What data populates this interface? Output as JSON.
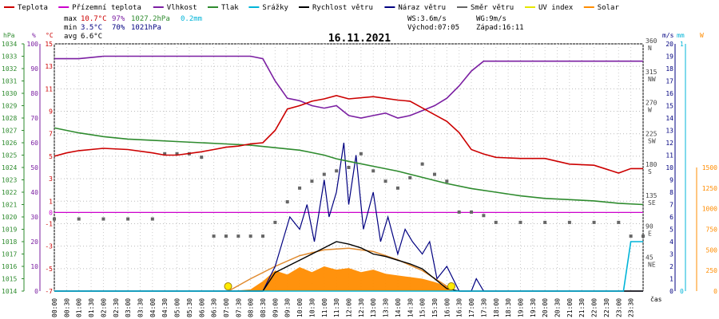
{
  "chart_data": {
    "type": "line",
    "title": "16.11.2021",
    "legend": [
      {
        "name": "Teplota",
        "color": "#cc0000"
      },
      {
        "name": "Přízemní teplota",
        "color": "#cc00cc"
      },
      {
        "name": "Vlhkost",
        "color": "#7b1fa2"
      },
      {
        "name": "Tlak",
        "color": "#2e8b2e"
      },
      {
        "name": "Srážky",
        "color": "#00b4d8"
      },
      {
        "name": "Rychlost větru",
        "color": "#000000"
      },
      {
        "name": "Náraz větru",
        "color": "#000080"
      },
      {
        "name": "Směr větru",
        "color": "#666666"
      },
      {
        "name": "UV index",
        "color": "#e6e600"
      },
      {
        "name": "Solar",
        "color": "#ff8c00"
      }
    ],
    "stats": {
      "max_label": "max",
      "max_temp": "10.7°C",
      "max_hum": "97%",
      "max_press": "1027.2hPa",
      "max_rain": "0.2mm",
      "min_label": "min",
      "min_temp": "3.5°C",
      "min_hum": "70%",
      "min_press": "1021hPa",
      "avg_label": "avg",
      "avg_temp": "6.6°C"
    },
    "wind_info": {
      "ws": "WS:3.6m/s",
      "wg": "WG:9m/s",
      "sunrise": "Východ:07:05",
      "sunset": "Západ:16:11"
    },
    "left_axis_units": [
      "hPa",
      "%",
      "°C"
    ],
    "right_axis_units": [
      "m/s",
      "mm",
      "W"
    ],
    "hpa_ticks": [
      "1034",
      "1033",
      "1032",
      "1031",
      "1030",
      "1029",
      "1028",
      "1027",
      "1026",
      "1025",
      "1024",
      "1023",
      "1022",
      "1021",
      "1020",
      "1019",
      "1018",
      "1017",
      "1016",
      "1015",
      "1014"
    ],
    "pct_ticks": [
      "100",
      "90",
      "80",
      "70",
      "60",
      "50",
      "40",
      "30",
      "20",
      "10",
      "0"
    ],
    "temp_ticks": [
      "15",
      "13",
      "11",
      "9",
      "7",
      "5",
      "3",
      "1",
      "-1",
      "-3",
      "-5",
      "-7"
    ],
    "temp_tick_zero": "0",
    "dir_ticks": [
      {
        "deg": "360",
        "dir": "N"
      },
      {
        "deg": "315",
        "dir": "NW"
      },
      {
        "deg": "270",
        "dir": "W"
      },
      {
        "deg": "225",
        "dir": "SW"
      },
      {
        "deg": "180",
        "dir": "S"
      },
      {
        "deg": "135",
        "dir": "SE"
      },
      {
        "deg": "90",
        "dir": "E"
      },
      {
        "deg": "45",
        "dir": "NE"
      },
      {
        "deg": "0",
        "dir": "N"
      }
    ],
    "ms_ticks": [
      "20",
      "19",
      "18",
      "17",
      "16",
      "15",
      "14",
      "13",
      "12",
      "11",
      "10",
      "9",
      "8",
      "7",
      "6",
      "5",
      "4",
      "3",
      "2",
      "1",
      "0"
    ],
    "mm_ticks": [
      "1",
      "0"
    ],
    "w_ticks": [
      "1500",
      "1250",
      "1000",
      "750",
      "500",
      "250",
      "0"
    ],
    "x_labels": [
      "00:00",
      "00:30",
      "01:00",
      "01:30",
      "02:00",
      "02:30",
      "03:00",
      "03:30",
      "04:00",
      "04:30",
      "05:00",
      "05:30",
      "06:00",
      "06:30",
      "07:00",
      "07:30",
      "08:00",
      "08:30",
      "09:00",
      "09:30",
      "10:00",
      "10:30",
      "11:00",
      "11:30",
      "12:00",
      "12:30",
      "13:00",
      "13:30",
      "14:00",
      "14:30",
      "15:00",
      "15:30",
      "16:00",
      "16:30",
      "17:00",
      "17:30",
      "18:00",
      "18:30",
      "19:00",
      "19:30",
      "20:00",
      "20:30",
      "21:00",
      "21:30",
      "22:00",
      "22:30",
      "23:00",
      "23:30"
    ],
    "x_axis_label": "čas",
    "temperature": {
      "hours": [
        0,
        0.5,
        1,
        2,
        3,
        4,
        4.5,
        5,
        6,
        6.5,
        7,
        7.5,
        8,
        8.5,
        9,
        9.5,
        10,
        10.5,
        11,
        11.5,
        12,
        13,
        14,
        14.5,
        15,
        15.5,
        16,
        16.5,
        17,
        17.5,
        18,
        19,
        20,
        21,
        22,
        23,
        23.5,
        24
      ],
      "values": [
        5,
        5.3,
        5.5,
        5.7,
        5.6,
        5.3,
        5.1,
        5.1,
        5.4,
        5.6,
        5.8,
        5.9,
        6.1,
        6.2,
        7.3,
        9.2,
        9.5,
        9.9,
        10.1,
        10.4,
        10.1,
        10.3,
        10,
        9.9,
        9.3,
        8.7,
        8.1,
        7.1,
        5.6,
        5.2,
        4.9,
        4.8,
        4.8,
        4.3,
        4.2,
        3.5,
        3.9,
        3.9
      ]
    },
    "ground_temp": {
      "value": 0
    },
    "humidity": {
      "hours": [
        0,
        1,
        2,
        3,
        4,
        5,
        6,
        7,
        8,
        8.5,
        9,
        9.5,
        10,
        10.5,
        11,
        11.5,
        12,
        12.5,
        13,
        13.5,
        14,
        14.5,
        15,
        15.5,
        16,
        16.5,
        17,
        17.5,
        18,
        19,
        20,
        21,
        22,
        23,
        24
      ],
      "values": [
        94,
        94,
        95,
        95,
        95,
        95,
        95,
        95,
        95,
        94,
        85,
        78,
        77,
        75,
        74,
        75,
        71,
        70,
        71,
        72,
        70,
        71,
        73,
        75,
        78,
        83,
        89,
        93,
        93,
        93,
        93,
        93,
        93,
        93,
        93
      ]
    },
    "pressure": {
      "hours": [
        0,
        1,
        2,
        3,
        4,
        5,
        6,
        7,
        8,
        9,
        10,
        11,
        11.5,
        12,
        13,
        14,
        15,
        16,
        17,
        18,
        19,
        20,
        21,
        22,
        23,
        24
      ],
      "values": [
        1027.2,
        1026.8,
        1026.5,
        1026.3,
        1026.2,
        1026.1,
        1026.0,
        1025.9,
        1025.8,
        1025.6,
        1025.4,
        1025.0,
        1024.7,
        1024.5,
        1024.1,
        1023.7,
        1023.2,
        1022.7,
        1022.3,
        1022.0,
        1021.7,
        1021.5,
        1021.4,
        1021.3,
        1021.1,
        1021.0
      ]
    },
    "wind_speed": {
      "hours": [
        0,
        8.5,
        9,
        9.5,
        10,
        10.5,
        11,
        11.5,
        12,
        12.5,
        13,
        13.5,
        14,
        14.5,
        15,
        15.5,
        16,
        16.5,
        24
      ],
      "values": [
        0,
        0,
        1.5,
        2,
        2.5,
        3,
        3.5,
        4,
        3.8,
        3.5,
        3.0,
        2.8,
        2.5,
        2.2,
        1.8,
        1.0,
        0.2,
        0,
        0
      ]
    },
    "wind_gust": {
      "hours": [
        0,
        8.5,
        9,
        9.3,
        9.6,
        10,
        10.3,
        10.6,
        11,
        11.2,
        11.5,
        11.8,
        12,
        12.3,
        12.6,
        13,
        13.3,
        13.6,
        14,
        14.3,
        14.6,
        15,
        15.3,
        15.6,
        16,
        16.5,
        17,
        17.2,
        17.5,
        24
      ],
      "values": [
        0,
        0,
        2,
        4,
        6,
        5,
        7,
        4,
        9,
        6,
        8,
        12,
        7,
        11,
        5,
        8,
        4,
        6,
        3,
        5,
        4,
        3,
        4,
        1,
        2,
        0,
        0,
        1,
        0,
        0
      ]
    },
    "wind_direction": {
      "hours": [
        0,
        1,
        2,
        3,
        4,
        4.5,
        5,
        5.5,
        6,
        6.5,
        7,
        7.5,
        8,
        8.5,
        9,
        9.5,
        10,
        10.5,
        11,
        11.5,
        12,
        12.5,
        13,
        13.5,
        14,
        14.5,
        15,
        15.5,
        16,
        16.5,
        17,
        17.5,
        18,
        19,
        20,
        21,
        22,
        23,
        23.5,
        24
      ],
      "values": [
        105,
        105,
        105,
        105,
        105,
        200,
        200,
        200,
        195,
        80,
        80,
        80,
        80,
        80,
        100,
        130,
        150,
        160,
        170,
        175,
        180,
        200,
        175,
        160,
        150,
        165,
        185,
        170,
        160,
        115,
        115,
        110,
        100,
        100,
        100,
        100,
        100,
        100,
        80,
        80
      ]
    },
    "rain_cumulative": {
      "hours": [
        0,
        23.2,
        23.5,
        24
      ],
      "values": [
        0,
        0,
        0.2,
        0.2
      ]
    },
    "solar": {
      "hours": [
        0,
        7.2,
        8,
        8.5,
        9,
        9.5,
        10,
        10.5,
        11,
        11.5,
        12,
        12.5,
        13,
        13.5,
        14,
        14.5,
        15,
        15.5,
        16,
        16.2,
        24
      ],
      "values": [
        0,
        0,
        20,
        120,
        250,
        200,
        290,
        230,
        300,
        260,
        280,
        230,
        260,
        210,
        190,
        170,
        150,
        110,
        60,
        0,
        0
      ]
    },
    "solar_theoretical": {
      "hours": [
        7.1,
        8,
        9,
        10,
        11,
        12,
        13,
        14,
        15,
        16,
        16.2
      ],
      "values": [
        0,
        150,
        300,
        430,
        500,
        520,
        480,
        380,
        250,
        60,
        0
      ]
    },
    "sun_markers": [
      "07:05",
      "16:11"
    ]
  }
}
